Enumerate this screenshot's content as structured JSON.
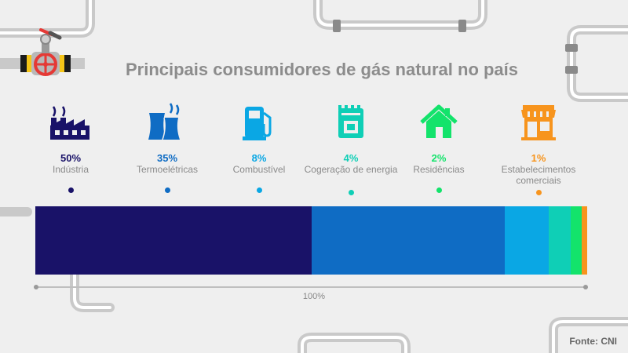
{
  "title": "Principais consumidores de gás natural no país",
  "source": "Fonte: CNI",
  "chart_data": {
    "type": "bar",
    "orientation": "horizontal-stacked",
    "total_label": "100%",
    "categories": [
      "Indústria",
      "Termoelétricas",
      "Combustível",
      "Cogeração de energia",
      "Residências",
      "Estabelecimentos comerciais"
    ],
    "values": [
      50,
      35,
      8,
      4,
      2,
      1
    ],
    "value_labels": [
      "50%",
      "35%",
      "8%",
      "4%",
      "2%",
      "1%"
    ],
    "colors": [
      "#191268",
      "#0f6cc4",
      "#0aa7e4",
      "#0fcfb6",
      "#13e36b",
      "#f7941d"
    ],
    "icons": [
      "factory-icon",
      "power-plant-icon",
      "fuel-pump-icon",
      "cogeneration-icon",
      "house-icon",
      "storefront-icon"
    ]
  }
}
